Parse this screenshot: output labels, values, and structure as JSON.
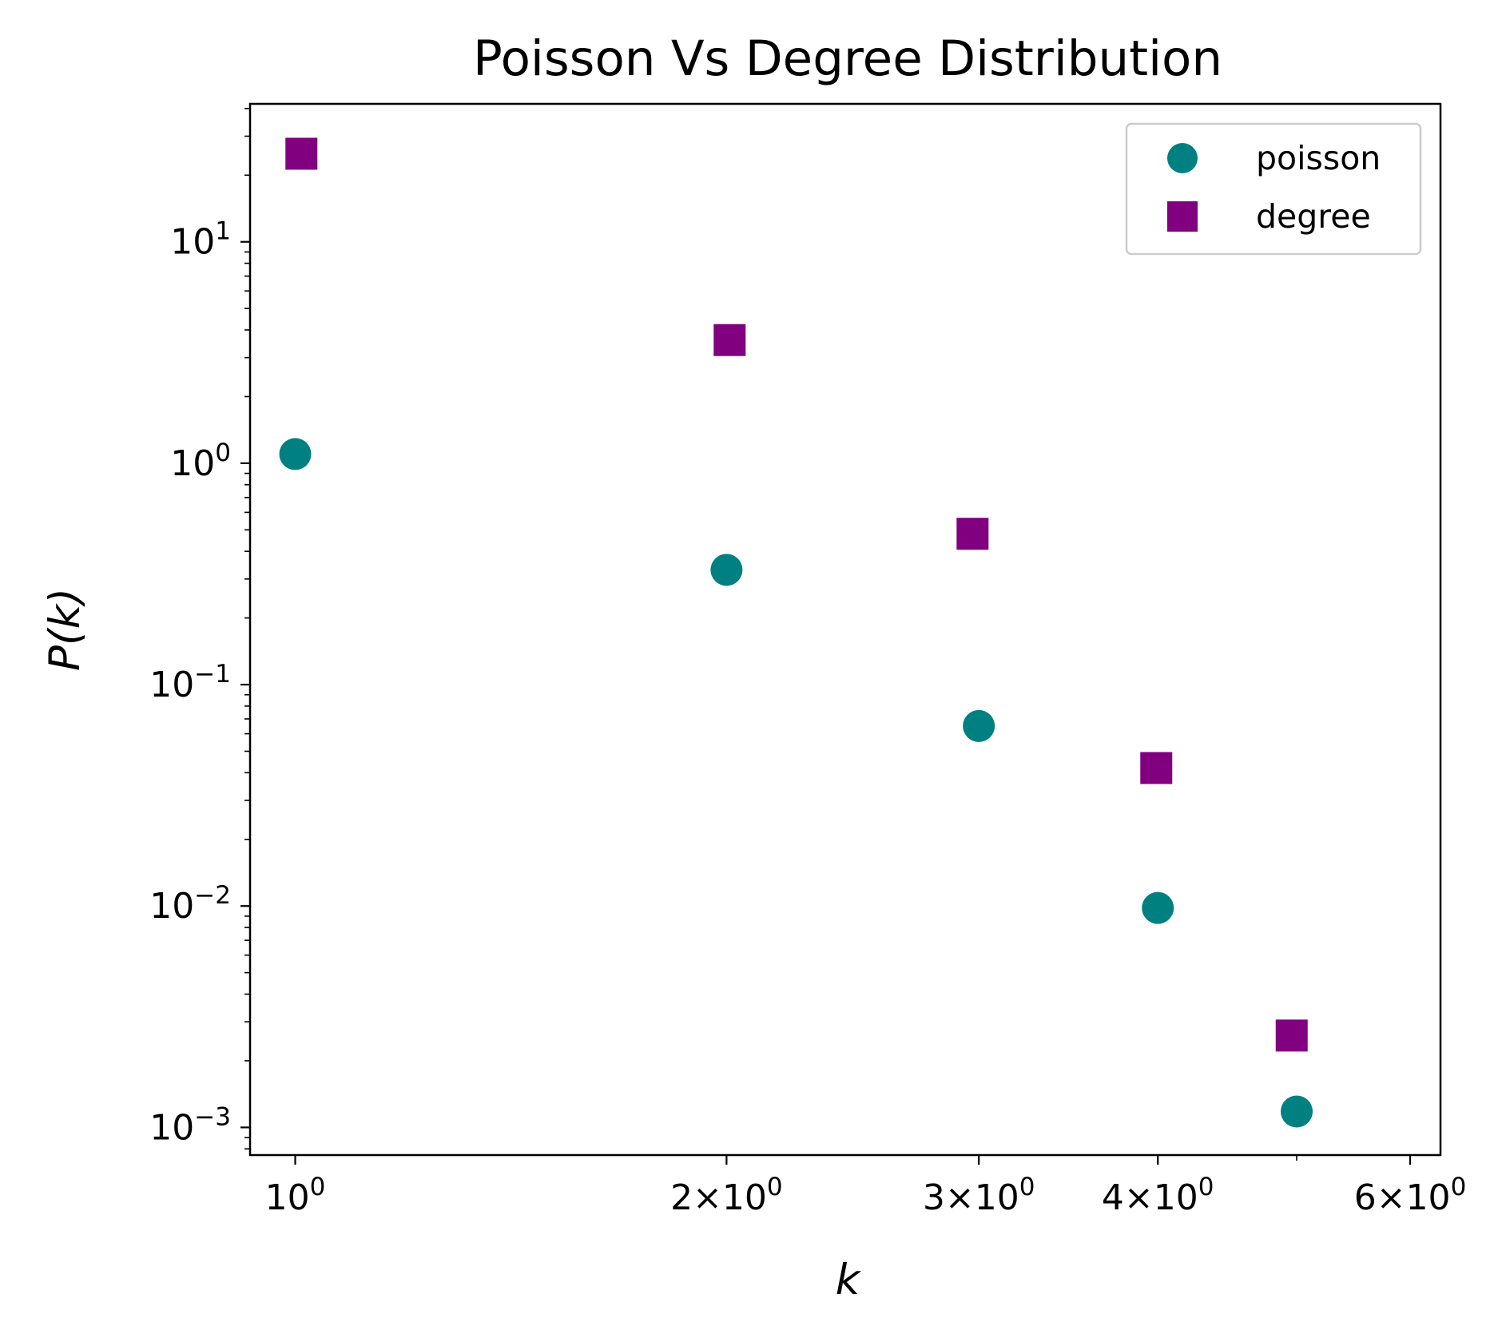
{
  "chart_data": {
    "type": "scatter",
    "title": "Poisson Vs Degree Distribution",
    "xlabel": "k",
    "ylabel": "P(k)",
    "xscale": "log",
    "yscale": "log",
    "xlim": [
      0.93,
      6.3
    ],
    "ylim": [
      0.00075,
      42
    ],
    "x_ticks": [
      {
        "value": 1,
        "mantissa": "",
        "exp": "0"
      },
      {
        "value": 2,
        "mantissa": "2",
        "exp": "0"
      },
      {
        "value": 3,
        "mantissa": "3",
        "exp": "0"
      },
      {
        "value": 4,
        "mantissa": "4",
        "exp": "0"
      },
      {
        "value": 6,
        "mantissa": "6",
        "exp": "0"
      }
    ],
    "y_ticks": [
      {
        "value": 0.001,
        "exp": "−3"
      },
      {
        "value": 0.01,
        "exp": "−2"
      },
      {
        "value": 0.1,
        "exp": "−1"
      },
      {
        "value": 1,
        "exp": "0"
      },
      {
        "value": 10,
        "exp": "1"
      }
    ],
    "grid": false,
    "legend_position": "top-right",
    "series": [
      {
        "name": "poisson",
        "marker": "circle",
        "color": "#008080",
        "points": [
          {
            "x": 1,
            "y": 1.1
          },
          {
            "x": 2,
            "y": 0.33
          },
          {
            "x": 3,
            "y": 0.065
          },
          {
            "x": 4,
            "y": 0.0098
          },
          {
            "x": 5,
            "y": 0.00118
          }
        ]
      },
      {
        "name": "degree",
        "marker": "square",
        "color": "#800080",
        "points": [
          {
            "x": 1.01,
            "y": 25
          },
          {
            "x": 2.01,
            "y": 3.6
          },
          {
            "x": 2.97,
            "y": 0.48
          },
          {
            "x": 3.99,
            "y": 0.042
          },
          {
            "x": 4.96,
            "y": 0.0026
          }
        ]
      }
    ]
  }
}
